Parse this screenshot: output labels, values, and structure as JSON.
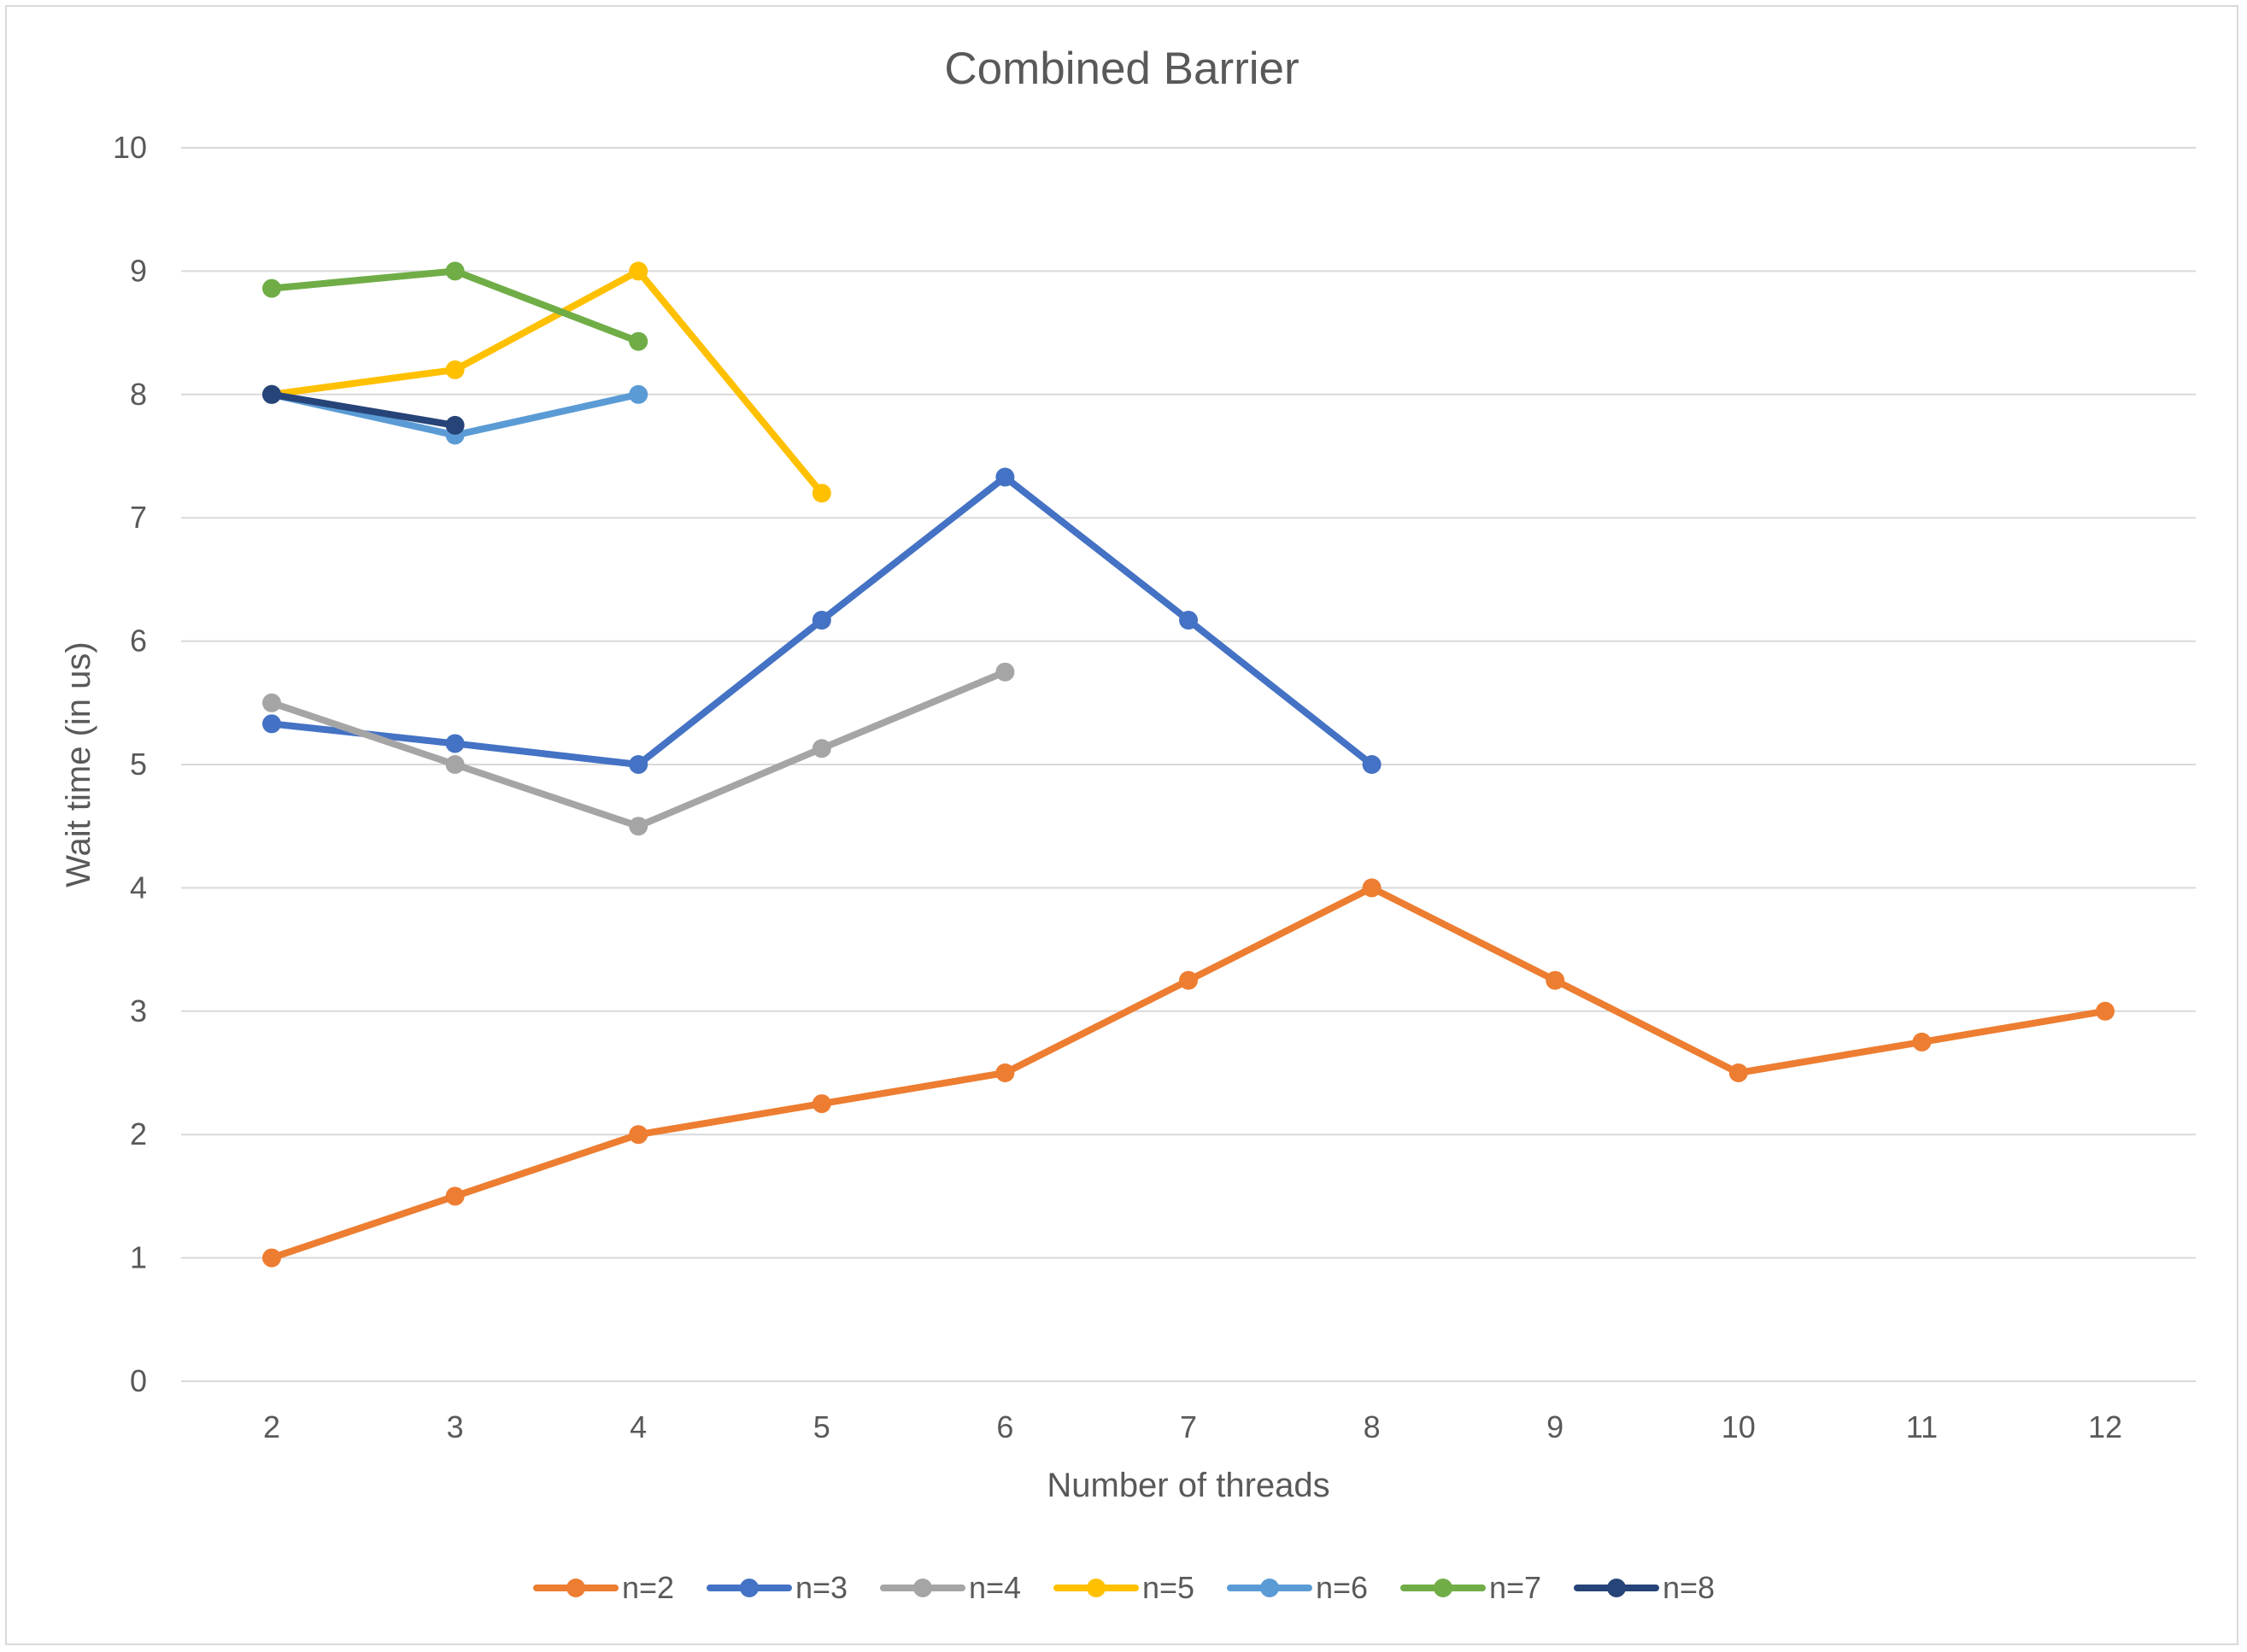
{
  "chart_data": {
    "type": "line",
    "title": "Combined Barrier",
    "xlabel": "Number of threads",
    "ylabel": "Wait time (in us)",
    "categories": [
      "2",
      "3",
      "4",
      "5",
      "6",
      "7",
      "8",
      "9",
      "10",
      "11",
      "12"
    ],
    "ylim": [
      0,
      10
    ],
    "yticks": [
      0,
      1,
      2,
      3,
      4,
      5,
      6,
      7,
      8,
      9,
      10
    ],
    "grid": true,
    "legend_position": "bottom",
    "series": [
      {
        "name": "n=2",
        "color": "#ED7D31",
        "values": [
          1,
          1.5,
          2,
          2.25,
          2.5,
          3.25,
          4,
          3.25,
          2.5,
          2.75,
          3
        ]
      },
      {
        "name": "n=3",
        "color": "#4472C4",
        "values": [
          5.33,
          5.17,
          5,
          6.17,
          7.33,
          6.17,
          5,
          null,
          null,
          null,
          null
        ]
      },
      {
        "name": "n=4",
        "color": "#A5A5A5",
        "values": [
          5.5,
          5,
          4.5,
          5.13,
          5.75,
          null,
          null,
          null,
          null,
          null,
          null
        ]
      },
      {
        "name": "n=5",
        "color": "#FFC000",
        "values": [
          8,
          8.2,
          9,
          7.2,
          null,
          null,
          null,
          null,
          null,
          null,
          null
        ]
      },
      {
        "name": "n=6",
        "color": "#5B9BD5",
        "values": [
          8,
          7.67,
          8,
          null,
          null,
          null,
          null,
          null,
          null,
          null,
          null
        ]
      },
      {
        "name": "n=7",
        "color": "#70AD47",
        "values": [
          8.86,
          9,
          8.43,
          null,
          null,
          null,
          null,
          null,
          null,
          null,
          null
        ]
      },
      {
        "name": "n=8",
        "color": "#264478",
        "values": [
          8,
          7.75,
          null,
          null,
          null,
          null,
          null,
          null,
          null,
          null,
          null
        ]
      }
    ]
  }
}
